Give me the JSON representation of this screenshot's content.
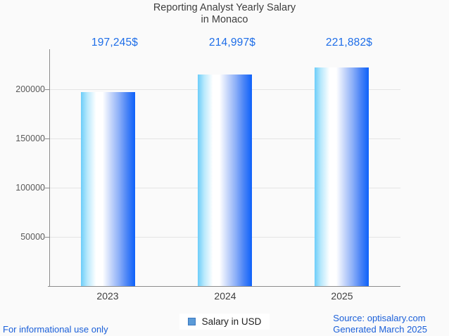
{
  "title": {
    "line1": "Reporting Analyst Yearly Salary",
    "line2": "in Monaco"
  },
  "chart_data": {
    "type": "bar",
    "title": "Reporting Analyst Yearly Salary in Monaco",
    "categories": [
      "2023",
      "2024",
      "2025"
    ],
    "series": [
      {
        "name": "Salary in USD",
        "values": [
          197245,
          214997,
          221882
        ]
      }
    ],
    "value_labels": [
      "197,245$",
      "214,997$",
      "221,882$"
    ],
    "xlabel": "",
    "ylabel": "",
    "ylim": [
      0,
      237500
    ],
    "yticks": [
      50000,
      100000,
      150000,
      200000
    ],
    "ytick_labels": [
      "50000",
      "100000",
      "150000",
      "200000"
    ],
    "grid": true,
    "legend_position": "bottom-center",
    "bar_gradient": [
      "#6ccdf9",
      "#ffffff",
      "#0d61fa"
    ]
  },
  "legend": {
    "label": "Salary in USD"
  },
  "footer": {
    "left_note": "For informational use only",
    "source": "Source: optisalary.com",
    "generated": "Generated March 2025"
  },
  "colors": {
    "background": "#fafafa",
    "title_text": "#3d3d3d",
    "value_label": "#1d6de8",
    "axis_line": "#8c8c8c",
    "gridline": "#e4e4e4",
    "tick_text": "#595959",
    "category_text": "#3f3f3f",
    "legend_text": "#212121",
    "legend_marker_fill": "#5b9bd8",
    "legend_marker_border": "#3c78c0",
    "footer_text": "#1a5fd9"
  }
}
